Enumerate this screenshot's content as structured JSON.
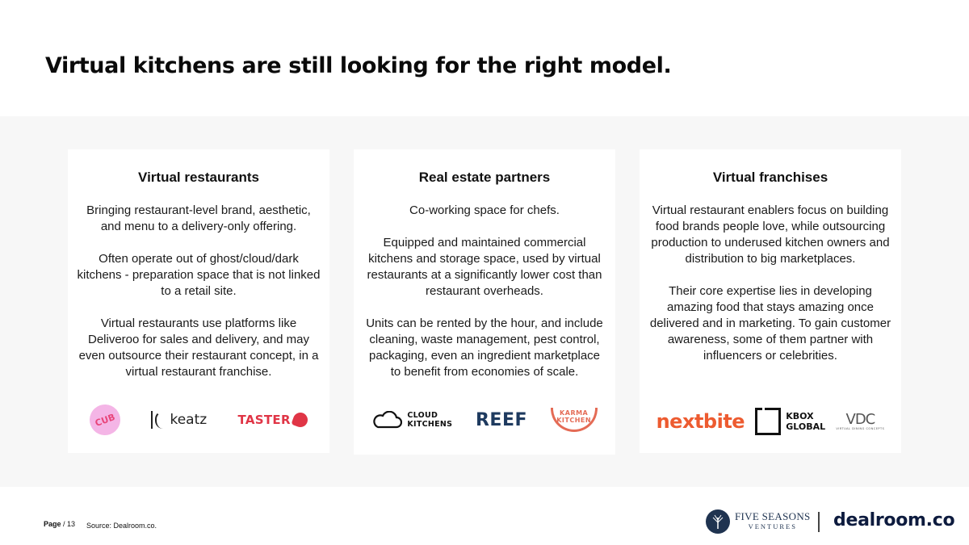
{
  "title": "Virtual kitchens are still looking for the right model.",
  "cards": [
    {
      "title": "Virtual restaurants",
      "paragraphs": [
        "Bringing restaurant-level brand, aesthetic, and menu to a delivery-only offering.",
        "Often operate out of ghost/cloud/dark kitchens - preparation space that is not linked to a retail site.",
        "Virtual restaurants use platforms like Deliveroo for sales and delivery, and may even outsource their restaurant concept, in a virtual restaurant franchise."
      ],
      "logos": {
        "circle_text": "CUB",
        "keatz": "keatz",
        "taster": "TASTER"
      }
    },
    {
      "title": "Real estate partners",
      "paragraphs": [
        "Co-working space for chefs.",
        "Equipped and maintained commercial kitchens and storage space, used by virtual restaurants at a significantly lower cost than restaurant overheads.",
        "Units can be rented by the hour, and include cleaning, waste management, pest control, packaging, even an ingredient marketplace to benefit from economies of scale."
      ],
      "logos": {
        "cloud_line1": "CLOUD",
        "cloud_line2": "KITCHENS",
        "reef": "REEF",
        "karma": "KARMA KITCHEN"
      }
    },
    {
      "title": "Virtual franchises",
      "paragraphs": [
        "Virtual restaurant enablers focus on building food brands people love, while outsourcing production to underused kitchen  owners and distribution to big marketplaces.",
        "Their core expertise lies in developing amazing food that stays amazing once delivered and in marketing. To gain customer awareness, some of them partner with influencers or celebrities."
      ],
      "logos": {
        "nextbite": "nextbite",
        "kbox_line1": "KBOX",
        "kbox_line2": "GLOBAL",
        "vdc": "VDC",
        "vdc_small": "VIRTUAL DINING CONCEPTS"
      }
    }
  ],
  "footer": {
    "page_label": "Page",
    "page_number": "/ 13",
    "source": "Source: Dealroom.co.",
    "fsv_line1": "FIVE SEASONS",
    "fsv_line2": "VENTURES",
    "dealroom": "dealroom.co"
  }
}
